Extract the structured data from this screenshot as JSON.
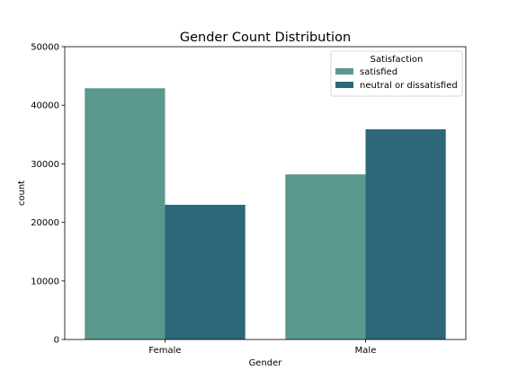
{
  "chart_data": {
    "type": "bar",
    "title": "Gender Count Distribution",
    "xlabel": "Gender",
    "ylabel": "count",
    "categories": [
      "Female",
      "Male"
    ],
    "series": [
      {
        "name": "satisfied",
        "values": [
          42900,
          28200
        ],
        "color": "#5a978d"
      },
      {
        "name": "neutral or dissatisfied",
        "values": [
          23000,
          35900
        ],
        "color": "#2c677a"
      }
    ],
    "ylim": [
      0,
      50000
    ],
    "yticks": [
      0,
      10000,
      20000,
      30000,
      40000,
      50000
    ],
    "legend": {
      "title": "Satisfaction",
      "position": "top-right"
    },
    "grid": false
  }
}
